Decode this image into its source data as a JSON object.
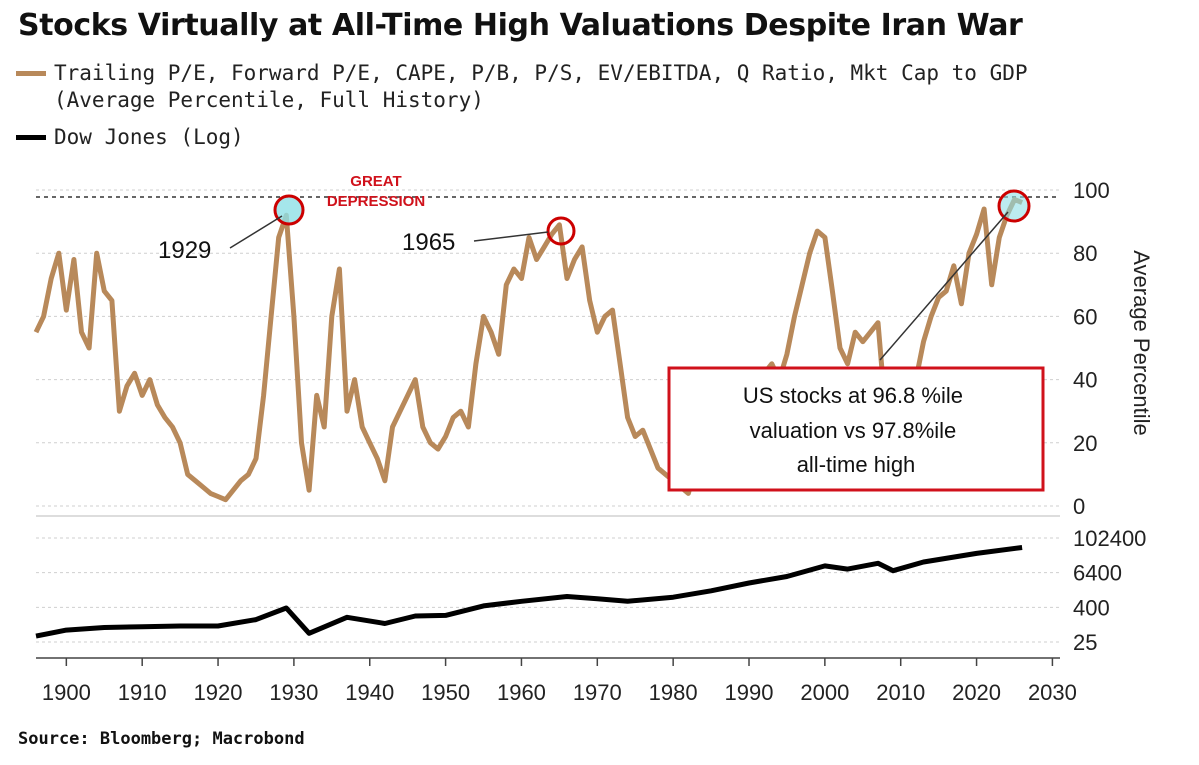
{
  "title": "Stocks Virtually at All-Time High Valuations Despite Iran War",
  "legend": [
    {
      "label": "Trailing P/E, Forward P/E, CAPE, P/B, P/S, EV/EBITDA, Q Ratio, Mkt Cap to GDP",
      "sublabel": "(Average Percentile, Full History)",
      "color": "#b8895a"
    },
    {
      "label": "Dow Jones (Log)",
      "color": "#000000"
    }
  ],
  "annotations": {
    "great_depression": "GREAT DEPRESSION",
    "label_1929": "1929",
    "label_1965": "1965",
    "box": [
      "US stocks at 96.8 %ile",
      "valuation vs 97.8%ile",
      "all-time high"
    ]
  },
  "source": "Source: Bloomberg; Macrobond",
  "chart_data": [
    {
      "type": "line",
      "ylabel": "Average Percentile",
      "ylim": [
        0,
        100
      ],
      "yticks": [
        0,
        20,
        40,
        60,
        80,
        100
      ],
      "reference_line": 97.8,
      "xlim": [
        1896,
        2031
      ],
      "xticks": [
        1900,
        1910,
        1920,
        1930,
        1940,
        1950,
        1960,
        1970,
        1980,
        1990,
        2000,
        2010,
        2020,
        2030
      ],
      "series": [
        {
          "color": "#b8895a",
          "x": [
            1896,
            1897,
            1898,
            1899,
            1900,
            1901,
            1902,
            1903,
            1904,
            1905,
            1906,
            1907,
            1908,
            1909,
            1910,
            1911,
            1912,
            1913,
            1914,
            1915,
            1916,
            1917,
            1918,
            1919,
            1920,
            1921,
            1922,
            1923,
            1924,
            1925,
            1926,
            1927,
            1928,
            1929,
            1930,
            1931,
            1932,
            1933,
            1934,
            1935,
            1936,
            1937,
            1938,
            1939,
            1940,
            1941,
            1942,
            1943,
            1944,
            1945,
            1946,
            1947,
            1948,
            1949,
            1950,
            1951,
            1952,
            1953,
            1954,
            1955,
            1956,
            1957,
            1958,
            1959,
            1960,
            1961,
            1962,
            1963,
            1964,
            1965,
            1966,
            1967,
            1968,
            1969,
            1970,
            1971,
            1972,
            1973,
            1974,
            1975,
            1976,
            1977,
            1978,
            1979,
            1980,
            1981,
            1982,
            1983,
            1984,
            1985,
            1986,
            1987,
            1988,
            1989,
            1990,
            1991,
            1992,
            1993,
            1994,
            1995,
            1996,
            1997,
            1998,
            1999,
            2000,
            2001,
            2002,
            2003,
            2004,
            2005,
            2006,
            2007,
            2008,
            2009,
            2010,
            2011,
            2012,
            2013,
            2014,
            2015,
            2016,
            2017,
            2018,
            2019,
            2020,
            2021,
            2022,
            2023,
            2024,
            2025,
            2026
          ],
          "values": [
            55,
            60,
            72,
            80,
            62,
            78,
            55,
            50,
            80,
            68,
            65,
            30,
            38,
            42,
            35,
            40,
            32,
            28,
            25,
            20,
            10,
            8,
            6,
            4,
            3,
            2,
            5,
            8,
            10,
            15,
            35,
            60,
            85,
            92,
            60,
            20,
            5,
            35,
            25,
            60,
            75,
            30,
            40,
            25,
            20,
            15,
            8,
            25,
            30,
            35,
            40,
            25,
            20,
            18,
            22,
            28,
            30,
            25,
            45,
            60,
            55,
            48,
            70,
            75,
            72,
            85,
            78,
            82,
            86,
            89,
            72,
            78,
            82,
            65,
            55,
            60,
            62,
            45,
            28,
            22,
            24,
            18,
            12,
            10,
            8,
            6,
            4,
            12,
            10,
            16,
            22,
            28,
            24,
            32,
            30,
            38,
            42,
            45,
            40,
            48,
            60,
            70,
            80,
            87,
            85,
            68,
            50,
            45,
            55,
            52,
            55,
            58,
            30,
            22,
            35,
            32,
            40,
            52,
            60,
            66,
            68,
            76,
            64,
            80,
            86,
            94,
            70,
            85,
            92,
            97,
            96
          ]
        }
      ]
    },
    {
      "type": "line",
      "ylabel": "",
      "yscale": "log",
      "yticks": [
        25,
        400,
        6400,
        102400
      ],
      "xlim": [
        1896,
        2031
      ],
      "series": [
        {
          "color": "#000000",
          "x": [
            1896,
            1900,
            1905,
            1910,
            1915,
            1920,
            1925,
            1929,
            1932,
            1937,
            1942,
            1946,
            1950,
            1955,
            1960,
            1966,
            1970,
            1974,
            1980,
            1985,
            1990,
            1995,
            2000,
            2003,
            2007,
            2009,
            2013,
            2020,
            2026
          ],
          "values": [
            40,
            65,
            80,
            85,
            90,
            90,
            150,
            380,
            50,
            180,
            110,
            200,
            210,
            450,
            650,
            950,
            800,
            650,
            900,
            1500,
            2800,
            4700,
            11000,
            8500,
            13500,
            7500,
            15000,
            30000,
            48000
          ]
        }
      ]
    }
  ]
}
